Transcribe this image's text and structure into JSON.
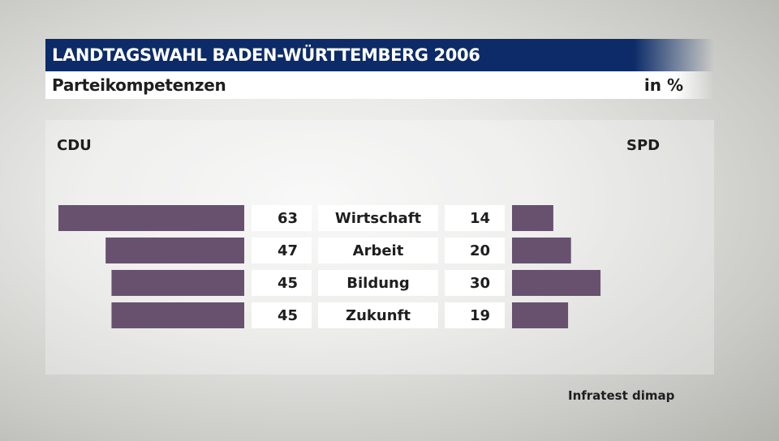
{
  "header": {
    "title": "LANDTAGSWAHL BADEN-WÜRTTEMBERG 2006",
    "subtitle": "Parteikompetenzen",
    "unit": "in %"
  },
  "source": "Infratest dimap",
  "colors": {
    "bar": "#68516f",
    "header_band": "#0c2b68",
    "label_box": "#ffffff",
    "text": "#1e1e1e"
  },
  "chart_data": {
    "type": "bar",
    "orientation": "horizontal-butterfly",
    "title": "Parteikompetenzen",
    "unit": "in %",
    "categories": [
      "Wirtschaft",
      "Arbeit",
      "Bildung",
      "Zukunft"
    ],
    "series": [
      {
        "name": "CDU",
        "side": "left",
        "values": [
          63,
          47,
          45,
          45
        ]
      },
      {
        "name": "SPD",
        "side": "right",
        "values": [
          14,
          20,
          30,
          19
        ]
      }
    ],
    "xlim": [
      0,
      63
    ],
    "grid": false,
    "legend": "top-left and top-right labels"
  }
}
